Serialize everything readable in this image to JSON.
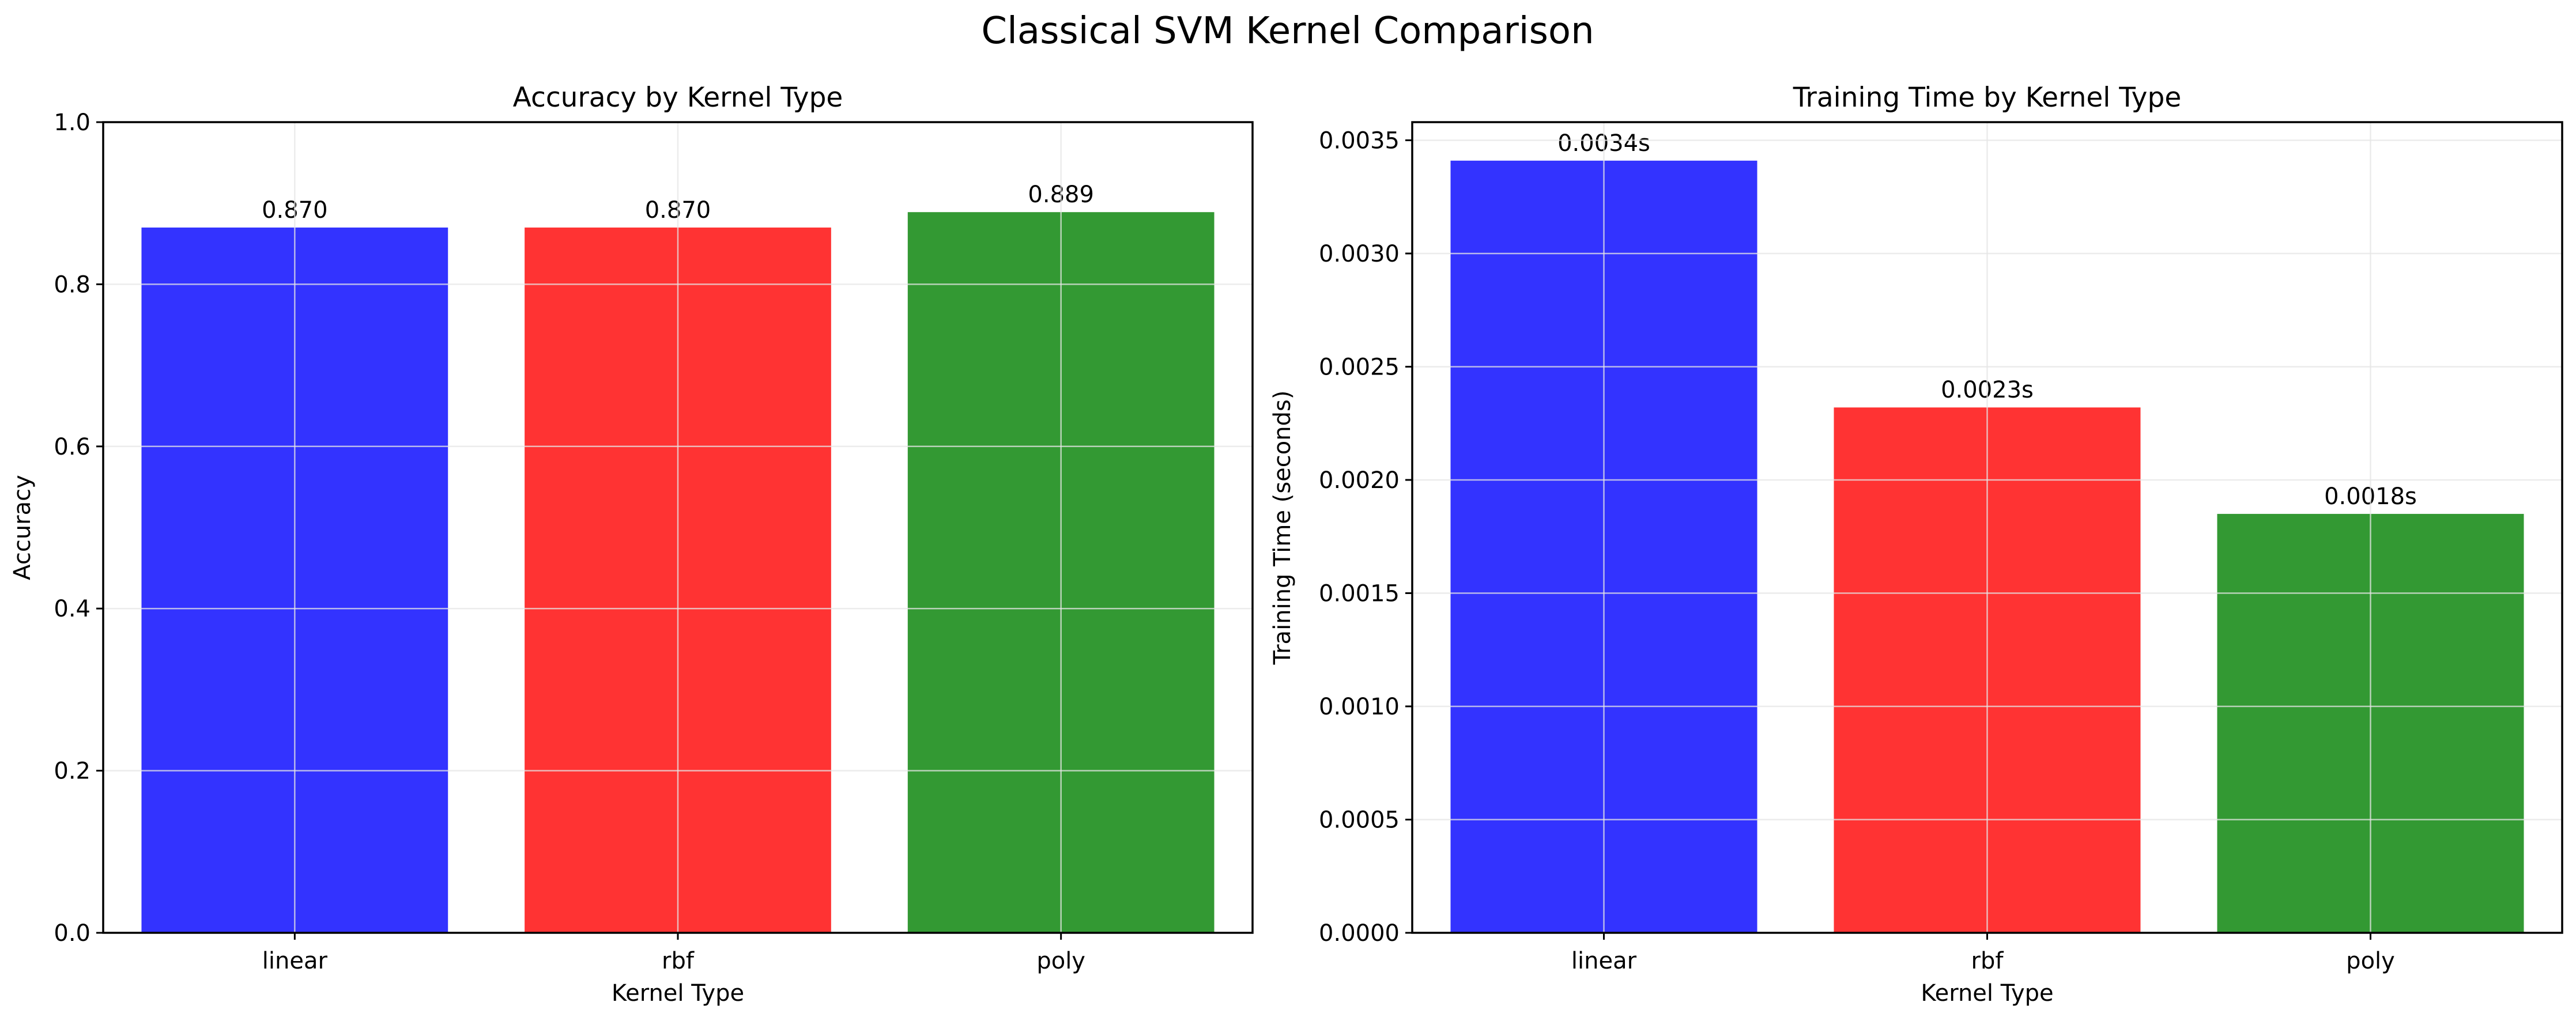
{
  "figure": {
    "suptitle": "Classical SVM Kernel Comparison"
  },
  "colors": {
    "linear": "#3333ff",
    "rbf": "#ff3333",
    "poly": "#339933",
    "grid": "#e6e6e6",
    "axis": "#000000"
  },
  "chart_data": [
    {
      "type": "bar",
      "title": "Accuracy by Kernel Type",
      "xlabel": "Kernel Type",
      "ylabel": "Accuracy",
      "categories": [
        "linear",
        "rbf",
        "poly"
      ],
      "values": [
        0.87,
        0.87,
        0.889
      ],
      "data_labels": [
        "0.870",
        "0.870",
        "0.889"
      ],
      "ylim": [
        0,
        1.0
      ],
      "yticks": [
        0.0,
        0.2,
        0.4,
        0.6,
        0.8,
        1.0
      ],
      "ytick_labels": [
        "0.0",
        "0.2",
        "0.4",
        "0.6",
        "0.8",
        "1.0"
      ],
      "bar_colors": [
        "#3333ff",
        "#ff3333",
        "#339933"
      ],
      "grid": true,
      "legend": "none"
    },
    {
      "type": "bar",
      "title": "Training Time by Kernel Type",
      "xlabel": "Kernel Type",
      "ylabel": "Training Time (seconds)",
      "categories": [
        "linear",
        "rbf",
        "poly"
      ],
      "values": [
        0.00341,
        0.00232,
        0.00185
      ],
      "data_labels": [
        "0.0034s",
        "0.0023s",
        "0.0018s"
      ],
      "ylim": [
        0,
        0.00358
      ],
      "yticks": [
        0.0,
        0.0005,
        0.001,
        0.0015,
        0.002,
        0.0025,
        0.003,
        0.0035
      ],
      "ytick_labels": [
        "0.0000",
        "0.0005",
        "0.0010",
        "0.0015",
        "0.0020",
        "0.0025",
        "0.0030",
        "0.0035"
      ],
      "bar_colors": [
        "#3333ff",
        "#ff3333",
        "#339933"
      ],
      "grid": true,
      "legend": "none"
    }
  ]
}
